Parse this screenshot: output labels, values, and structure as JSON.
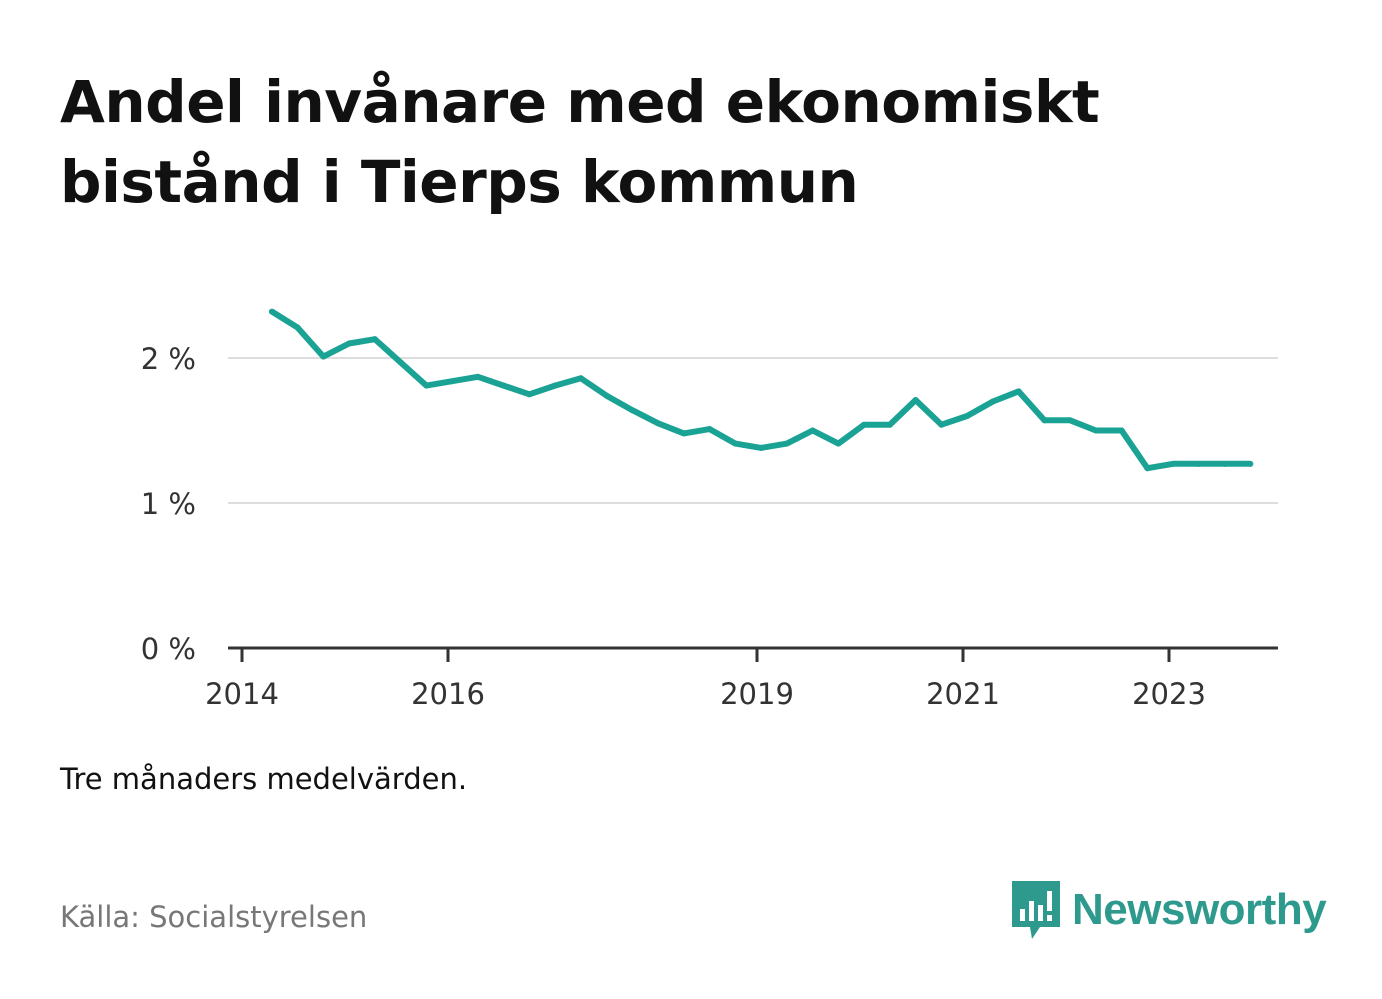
{
  "title_line1": "Andel invånare med ekonomiskt",
  "title_line2": "bistånd i Tierps kommun",
  "note": "Tre månaders medelvärden.",
  "source": "Källa: Socialstyrelsen",
  "brand": {
    "name": "Newsworthy",
    "color": "#2e9a8e",
    "icon": "bar-chart-speech-bubble-icon"
  },
  "colors": {
    "line": "#1aa395",
    "grid": "#dddddd",
    "axis": "#333333",
    "text": "#333333"
  },
  "chart_data": {
    "type": "line",
    "title": "Andel invånare med ekonomiskt bistånd i Tierps kommun",
    "xlabel": "",
    "ylabel": "",
    "ylim": [
      0,
      2.5
    ],
    "xlim": [
      2014.0,
      2024.25
    ],
    "grid": true,
    "y_ticks": [
      {
        "value": 0,
        "label": "0 %"
      },
      {
        "value": 1,
        "label": "1 %"
      },
      {
        "value": 2,
        "label": "2 %"
      }
    ],
    "x_ticks": [
      {
        "value": 2014,
        "label": "2014"
      },
      {
        "value": 2016,
        "label": "2016"
      },
      {
        "value": 2019,
        "label": "2019"
      },
      {
        "value": 2021,
        "label": "2021"
      },
      {
        "value": 2023,
        "label": "2023"
      }
    ],
    "series": [
      {
        "x": [
          2014.29,
          2014.54,
          2014.79,
          2015.04,
          2015.29,
          2015.54,
          2015.79,
          2016.04,
          2016.29,
          2016.54,
          2016.79,
          2017.04,
          2017.29,
          2017.54,
          2017.79,
          2018.04,
          2018.29,
          2018.54,
          2018.79,
          2019.04,
          2019.29,
          2019.54,
          2019.79,
          2020.04,
          2020.29,
          2020.54,
          2020.79,
          2021.04,
          2021.29,
          2021.54,
          2021.79,
          2022.04,
          2022.29,
          2022.54,
          2022.79,
          2023.04,
          2023.29,
          2023.54,
          2023.79
        ],
        "values": [
          2.32,
          2.21,
          2.01,
          2.1,
          2.13,
          1.97,
          1.81,
          1.84,
          1.87,
          1.81,
          1.75,
          1.81,
          1.86,
          1.74,
          1.64,
          1.55,
          1.48,
          1.51,
          1.41,
          1.38,
          1.41,
          1.5,
          1.41,
          1.54,
          1.54,
          1.71,
          1.54,
          1.6,
          1.7,
          1.77,
          1.57,
          1.57,
          1.5,
          1.5,
          1.24,
          1.27,
          1.27,
          1.27,
          1.27
        ]
      }
    ]
  }
}
